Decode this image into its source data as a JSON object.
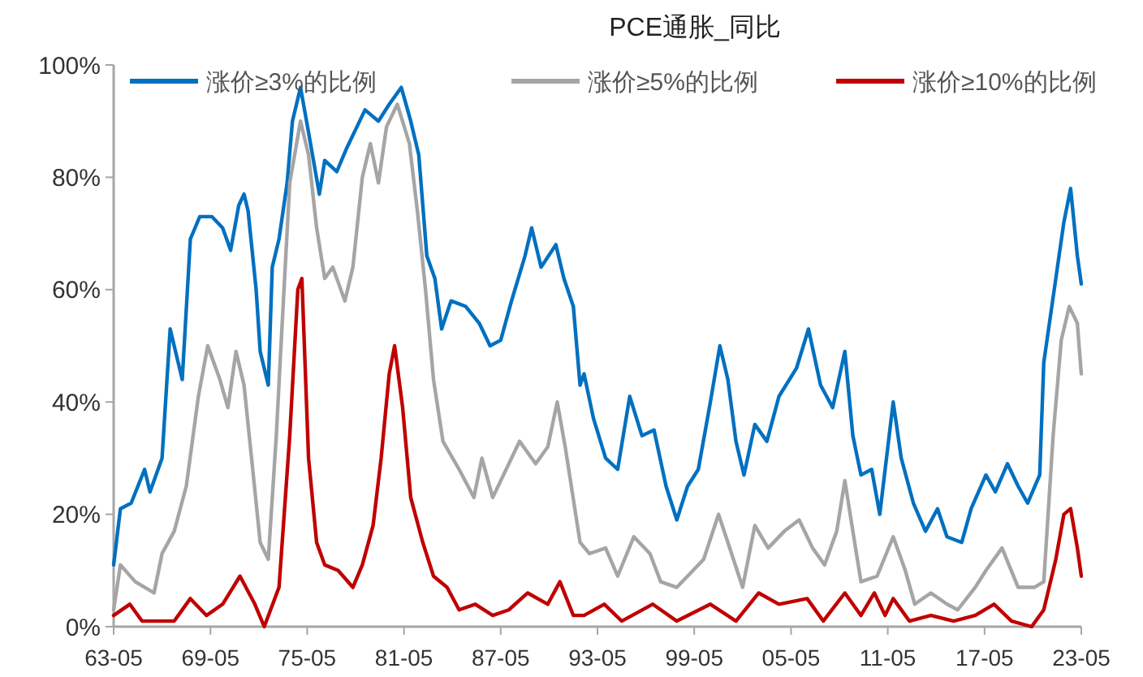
{
  "chart_data": {
    "type": "line",
    "title": "PCE通胀_同比",
    "legend": "top",
    "ylim": [
      0,
      100
    ],
    "yticks": [
      {
        "value": 0,
        "label": "0%"
      },
      {
        "value": 20,
        "label": "20%"
      },
      {
        "value": 40,
        "label": "40%"
      },
      {
        "value": 60,
        "label": "60%"
      },
      {
        "value": 80,
        "label": "80%"
      },
      {
        "value": 100,
        "label": "100%"
      }
    ],
    "xlim": [
      "1963-05",
      "2023-05"
    ],
    "xticks": [
      {
        "value": "1963-05",
        "label": "63-05"
      },
      {
        "value": "1969-05",
        "label": "69-05"
      },
      {
        "value": "1975-05",
        "label": "75-05"
      },
      {
        "value": "1981-05",
        "label": "81-05"
      },
      {
        "value": "1987-05",
        "label": "87-05"
      },
      {
        "value": "1993-05",
        "label": "93-05"
      },
      {
        "value": "1999-05",
        "label": "99-05"
      },
      {
        "value": "2005-05",
        "label": "05-05"
      },
      {
        "value": "2011-05",
        "label": "11-05"
      },
      {
        "value": "2017-05",
        "label": "17-05"
      },
      {
        "value": "2023-05",
        "label": "23-05"
      }
    ],
    "series": [
      {
        "name": "涨价≥3%的比例",
        "color": "#0070c0",
        "x": [
          "1963-05",
          "1963-10",
          "1964-06",
          "1965-04",
          "1965-08",
          "1966-05",
          "1966-11",
          "1967-08",
          "1968-02",
          "1968-09",
          "1969-06",
          "1970-02",
          "1970-08",
          "1971-02",
          "1971-06",
          "1971-09",
          "1972-03",
          "1972-06",
          "1972-12",
          "1973-03",
          "1973-08",
          "1974-02",
          "1974-06",
          "1974-12",
          "1975-06",
          "1976-02",
          "1976-06",
          "1977-03",
          "1977-10",
          "1978-06",
          "1978-12",
          "1979-10",
          "1980-06",
          "1981-03",
          "1981-10",
          "1982-04",
          "1982-10",
          "1983-04",
          "1983-09",
          "1984-04",
          "1985-03",
          "1986-01",
          "1986-09",
          "1987-05",
          "1988-01",
          "1988-11",
          "1989-04",
          "1989-11",
          "1990-10",
          "1991-04",
          "1991-11",
          "1992-04",
          "1992-07",
          "1993-02",
          "1993-11",
          "1994-08",
          "1995-05",
          "1996-02",
          "1996-11",
          "1997-08",
          "1998-04",
          "1998-12",
          "1999-08",
          "2000-05",
          "2000-12",
          "2001-06",
          "2001-12",
          "2002-06",
          "2003-02",
          "2003-11",
          "2004-08",
          "2005-09",
          "2006-06",
          "2007-03",
          "2007-12",
          "2008-09",
          "2009-03",
          "2009-09",
          "2010-05",
          "2010-11",
          "2011-09",
          "2012-03",
          "2012-12",
          "2013-09",
          "2014-06",
          "2015-01",
          "2015-12",
          "2016-07",
          "2017-06",
          "2018-01",
          "2018-10",
          "2019-06",
          "2020-01",
          "2020-10",
          "2021-01",
          "2021-10",
          "2022-04",
          "2022-09",
          "2023-02",
          "2023-05"
        ],
        "values": [
          11,
          21,
          22,
          28,
          24,
          30,
          53,
          44,
          69,
          73,
          73,
          71,
          67,
          75,
          77,
          74,
          60,
          49,
          43,
          64,
          69,
          79,
          90,
          96,
          88,
          77,
          83,
          81,
          85,
          89,
          92,
          90,
          93,
          96,
          90,
          84,
          66,
          62,
          53,
          58,
          57,
          54,
          50,
          51,
          58,
          66,
          71,
          64,
          68,
          62,
          57,
          43,
          45,
          37,
          30,
          28,
          41,
          34,
          35,
          25,
          19,
          25,
          28,
          40,
          50,
          44,
          33,
          27,
          36,
          33,
          41,
          46,
          53,
          43,
          39,
          49,
          34,
          27,
          28,
          20,
          40,
          30,
          22,
          17,
          21,
          16,
          15,
          21,
          27,
          24,
          29,
          25,
          22,
          27,
          47,
          62,
          72,
          78,
          66,
          61
        ]
      },
      {
        "name": "涨价≥5%的比例",
        "color": "#a5a5a5",
        "x": [
          "1963-05",
          "1963-10",
          "1964-09",
          "1965-11",
          "1966-05",
          "1967-02",
          "1967-11",
          "1968-08",
          "1969-03",
          "1969-12",
          "1970-06",
          "1970-12",
          "1971-06",
          "1971-12",
          "1972-06",
          "1972-12",
          "1973-06",
          "1973-09",
          "1974-04",
          "1974-12",
          "1975-06",
          "1975-12",
          "1976-06",
          "1976-12",
          "1977-09",
          "1978-03",
          "1978-10",
          "1979-04",
          "1979-10",
          "1980-04",
          "1980-12",
          "1981-09",
          "1982-03",
          "1982-09",
          "1983-03",
          "1983-10",
          "1984-10",
          "1985-09",
          "1986-03",
          "1986-11",
          "1987-09",
          "1988-07",
          "1989-07",
          "1990-04",
          "1990-11",
          "1991-05",
          "1992-04",
          "1992-11",
          "1993-11",
          "1994-08",
          "1995-08",
          "1996-08",
          "1997-04",
          "1998-04",
          "1998-12",
          "1999-12",
          "2000-11",
          "2001-06",
          "2002-05",
          "2003-02",
          "2003-12",
          "2004-12",
          "2005-11",
          "2006-09",
          "2007-06",
          "2008-03",
          "2008-09",
          "2009-03",
          "2009-09",
          "2010-09",
          "2011-09",
          "2012-06",
          "2013-01",
          "2014-01",
          "2015-01",
          "2015-09",
          "2016-10",
          "2017-06",
          "2018-06",
          "2019-06",
          "2020-06",
          "2021-01",
          "2021-08",
          "2022-02",
          "2022-08",
          "2023-02",
          "2023-05"
        ],
        "values": [
          3,
          11,
          8,
          6,
          13,
          17,
          25,
          41,
          50,
          44,
          39,
          49,
          43,
          29,
          15,
          12,
          34,
          48,
          79,
          90,
          84,
          71,
          62,
          64,
          58,
          64,
          80,
          86,
          79,
          89,
          93,
          86,
          74,
          60,
          44,
          33,
          28,
          23,
          30,
          23,
          28,
          33,
          29,
          32,
          40,
          32,
          15,
          13,
          14,
          9,
          16,
          13,
          8,
          7,
          9,
          12,
          20,
          15,
          7,
          18,
          14,
          17,
          19,
          14,
          11,
          17,
          26,
          17,
          8,
          9,
          16,
          10,
          4,
          6,
          4,
          3,
          7,
          10,
          14,
          7,
          7,
          8,
          34,
          51,
          57,
          54,
          45
        ]
      },
      {
        "name": "涨价≥10%的比例",
        "color": "#c00000",
        "x": [
          "1963-05",
          "1964-05",
          "1965-02",
          "1966-02",
          "1967-02",
          "1968-02",
          "1969-02",
          "1970-02",
          "1971-03",
          "1972-02",
          "1972-09",
          "1973-08",
          "1974-04",
          "1974-10",
          "1975-01",
          "1975-06",
          "1975-12",
          "1976-06",
          "1977-04",
          "1978-03",
          "1978-10",
          "1979-06",
          "1979-12",
          "1980-06",
          "1980-10",
          "1981-04",
          "1981-10",
          "1982-07",
          "1983-03",
          "1984-01",
          "1984-10",
          "1985-10",
          "1986-11",
          "1987-11",
          "1989-01",
          "1990-04",
          "1991-01",
          "1991-11",
          "1992-07",
          "1993-10",
          "1994-11",
          "1996-10",
          "1998-04",
          "2000-05",
          "2001-12",
          "2003-05",
          "2004-08",
          "2006-05",
          "2007-05",
          "2008-09",
          "2009-09",
          "2010-07",
          "2011-03",
          "2011-09",
          "2012-09",
          "2014-01",
          "2015-06",
          "2016-10",
          "2017-12",
          "2019-01",
          "2020-04",
          "2021-01",
          "2021-10",
          "2022-04",
          "2022-09",
          "2023-02",
          "2023-05"
        ],
        "values": [
          2,
          4,
          1,
          1,
          1,
          5,
          2,
          4,
          9,
          4,
          0,
          7,
          34,
          60,
          62,
          30,
          15,
          11,
          10,
          7,
          11,
          18,
          30,
          45,
          50,
          39,
          23,
          15,
          9,
          7,
          3,
          4,
          2,
          3,
          6,
          4,
          8,
          2,
          2,
          4,
          1,
          4,
          1,
          4,
          1,
          6,
          4,
          5,
          1,
          6,
          2,
          6,
          2,
          5,
          1,
          2,
          1,
          2,
          4,
          1,
          0,
          3,
          12,
          20,
          21,
          14,
          9
        ]
      }
    ]
  }
}
